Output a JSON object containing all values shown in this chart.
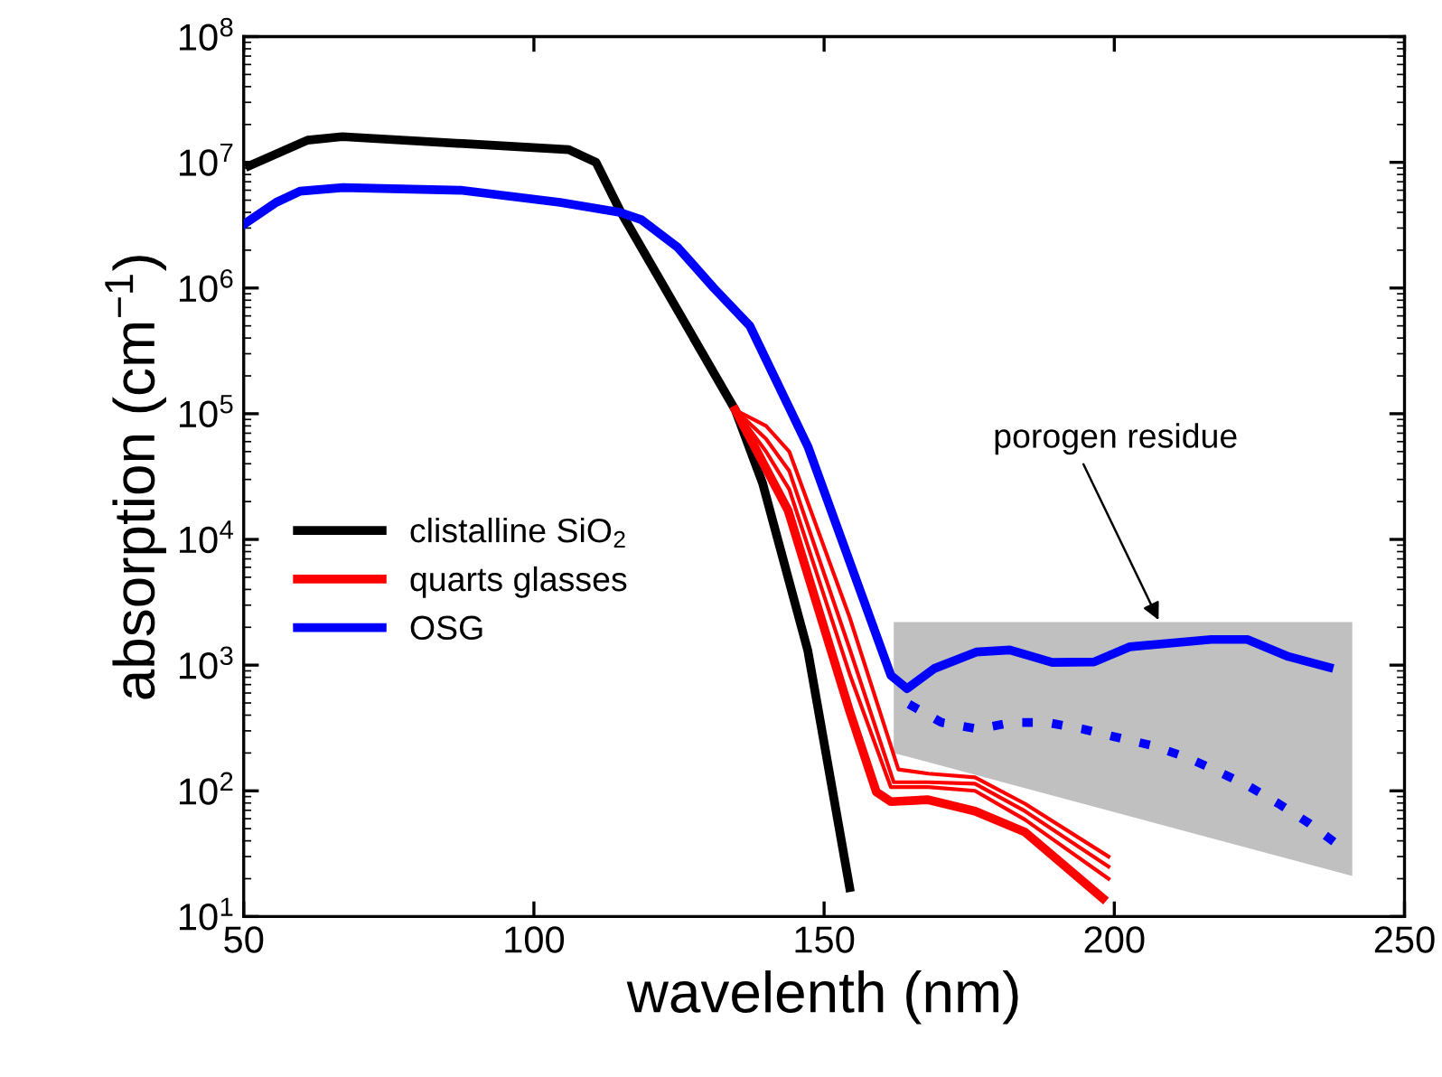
{
  "chart_data": {
    "type": "line",
    "xlabel": "wavelenth (nm)",
    "ylabel": "absorption (cm$^{−1}$)",
    "log": "y",
    "xlim": [
      50,
      250
    ],
    "xticks": [
      50,
      100,
      150,
      200,
      250
    ],
    "ylim": [
      10,
      100000000
    ],
    "yticks": [
      {
        "value": 10,
        "label": "10$^{1}$"
      },
      {
        "value": 100,
        "label": "10$^{2}$"
      },
      {
        "value": 1000,
        "label": "10$^{3}$"
      },
      {
        "value": 10000,
        "label": "10$^{4}$"
      },
      {
        "value": 100000,
        "label": "10$^{5}$"
      },
      {
        "value": 1000000,
        "label": "10$^{6}$"
      },
      {
        "value": 10000000,
        "label": "10$^{7}$"
      },
      {
        "value": 100000000,
        "label": "10$^{8}$"
      }
    ],
    "grid": false,
    "legend": "left",
    "line_style": "solid",
    "marker": "none",
    "series": [
      {
        "color": "#c0c0c0",
        "x": [
          162,
          241
        ],
        "values": [
          null,
          null
        ],
        "lower": [
          200,
          21
        ],
        "upper": [
          2200,
          2200
        ]
      },
      {
        "name": "clistalline SiO$_{2}$",
        "color": "#000000",
        "x": [
          51,
          61,
          67,
          106,
          110.7,
          115,
          134.7,
          139.4,
          147.2,
          154.4
        ],
        "values": [
          9400000,
          15000000,
          16000000,
          12600000,
          10000000,
          4000000,
          107000,
          28000,
          1300,
          17
        ]
      },
      {
        "color": "#ff0000",
        "x": [
          134.7,
          140,
          144,
          154.4,
          162.8,
          168,
          176,
          184.6,
          199
        ],
        "values": [
          107000,
          80000,
          50000,
          2400,
          148,
          137,
          128,
          79,
          30
        ]
      },
      {
        "color": "#ff0000",
        "x": [
          134.7,
          140,
          144,
          154.4,
          162,
          168,
          176,
          184.6,
          199
        ],
        "values": [
          107000,
          63000,
          35000,
          1350,
          117,
          117,
          114,
          69,
          25
        ]
      },
      {
        "color": "#ff0000",
        "x": [
          134.7,
          140,
          144,
          154.4,
          161.5,
          168,
          176,
          184.6,
          199
        ],
        "values": [
          107000,
          50000,
          25000,
          850,
          107,
          107,
          100,
          59,
          20
        ]
      },
      {
        "name": "quarts glasses",
        "color": "#ff0000",
        "x": [
          134.7,
          143.8,
          154.4,
          159,
          161.5,
          167.8,
          176,
          184.6,
          198
        ],
        "values": [
          107000,
          17000,
          430,
          98,
          82,
          85,
          69,
          47,
          14
        ]
      },
      {
        "name": "OSG",
        "color": "#0000ff",
        "x": [
          50,
          55.6,
          59.7,
          67.1,
          87.4,
          104.5,
          114.8,
          118.5,
          124.8,
          131,
          137.2,
          147.2,
          161.5,
          164.3,
          169,
          176.2,
          182,
          189.3,
          196.5,
          202.7,
          216.7,
          222.9,
          230,
          237
        ],
        "values": [
          3200000,
          4800000,
          5900000,
          6300000,
          6000000,
          4800000,
          4000000,
          3500000,
          2100000,
          1000000,
          500000,
          55000,
          830,
          650,
          940,
          1270,
          1320,
          1050,
          1060,
          1400,
          1600,
          1600,
          1170,
          960
        ]
      },
      {
        "color": "#0000ff",
        "line_style": "dotted",
        "x": [
          164.6,
          170.2,
          176.5,
          182.4,
          188.4,
          194.6,
          199.9,
          206.4,
          212.4,
          217.7,
          223,
          228.3,
          233.6,
          238.6
        ],
        "values": [
          490,
          350,
          310,
          350,
          350,
          310,
          270,
          230,
          185,
          144,
          110,
          79,
          55,
          37
        ]
      }
    ],
    "annotations": [
      {
        "text": "porogen residue",
        "x": 208,
        "y": 2100
      }
    ]
  }
}
